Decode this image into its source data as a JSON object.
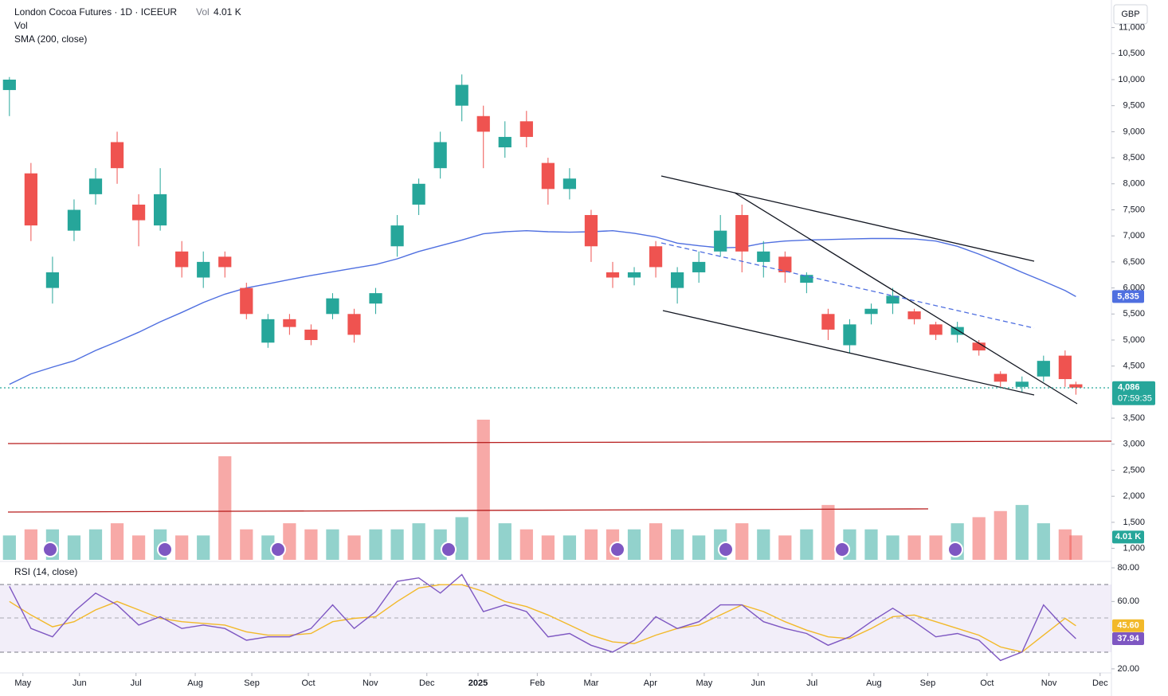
{
  "chart_data": {
    "type": "candlestick",
    "title": "London Cocoa Futures · 1D · ICEEUR",
    "currency": "GBP",
    "x": [
      0,
      8,
      16,
      24,
      32,
      40,
      48,
      56,
      64,
      72,
      80,
      88,
      96,
      104,
      112,
      120,
      128,
      136,
      144,
      152,
      160,
      168,
      176,
      184,
      192,
      200,
      208,
      216,
      224,
      232,
      240,
      248,
      256,
      264,
      272,
      280,
      288,
      296,
      304,
      312,
      320,
      328,
      336,
      344,
      352,
      360,
      368,
      376,
      384,
      392,
      396
    ],
    "xlim": [
      -3.5,
      409.2
    ],
    "xticks": [
      {
        "value": 5,
        "label": "May"
      },
      {
        "value": 26,
        "label": "Jun"
      },
      {
        "value": 47,
        "label": "Jul"
      },
      {
        "value": 69,
        "label": "Aug"
      },
      {
        "value": 90,
        "label": "Sep"
      },
      {
        "value": 111,
        "label": "Oct"
      },
      {
        "value": 134,
        "label": "Nov"
      },
      {
        "value": 155,
        "label": "Dec"
      },
      {
        "value": 174,
        "label": "2025"
      },
      {
        "value": 196,
        "label": "Feb"
      },
      {
        "value": 216,
        "label": "Mar"
      },
      {
        "value": 238,
        "label": "Apr"
      },
      {
        "value": 258,
        "label": "May"
      },
      {
        "value": 278,
        "label": "Jun"
      },
      {
        "value": 298,
        "label": "Jul"
      },
      {
        "value": 321,
        "label": "Aug"
      },
      {
        "value": 341,
        "label": "Sep"
      },
      {
        "value": 363,
        "label": "Oct"
      },
      {
        "value": 386,
        "label": "Nov"
      },
      {
        "value": 405,
        "label": "Dec"
      }
    ],
    "ylim": [
      749,
      11529
    ],
    "yticks": [
      {
        "value": 1000,
        "label": "1,000"
      },
      {
        "value": 1500,
        "label": "1,500"
      },
      {
        "value": 2000,
        "label": "2,000"
      },
      {
        "value": 2500,
        "label": "2,500"
      },
      {
        "value": 3000,
        "label": "3,000"
      },
      {
        "value": 3500,
        "label": "3,500"
      },
      {
        "value": 4500,
        "label": "4,500"
      },
      {
        "value": 5000,
        "label": "5,000"
      },
      {
        "value": 5500,
        "label": "5,500"
      },
      {
        "value": 6000,
        "label": "6,000"
      },
      {
        "value": 6500,
        "label": "6,500"
      },
      {
        "value": 7000,
        "label": "7,000"
      },
      {
        "value": 7500,
        "label": "7,500"
      },
      {
        "value": 8000,
        "label": "8,000"
      },
      {
        "value": 8500,
        "label": "8,500"
      },
      {
        "value": 9000,
        "label": "9,000"
      },
      {
        "value": 9500,
        "label": "9,500"
      },
      {
        "value": 10000,
        "label": "10,000"
      },
      {
        "value": 10500,
        "label": "10,500"
      },
      {
        "value": 11000,
        "label": "11,000"
      }
    ],
    "up_color": "#26a69a",
    "down_color": "#ef5350",
    "open": [
      9800,
      8200,
      6000,
      7100,
      7800,
      8800,
      7600,
      7200,
      6700,
      6200,
      6600,
      6000,
      4950,
      5400,
      5200,
      5500,
      5500,
      5700,
      6800,
      7600,
      8300,
      9500,
      9300,
      8700,
      9200,
      8400,
      7900,
      7400,
      6300,
      6200,
      6800,
      6000,
      6300,
      6700,
      7400,
      6500,
      6600,
      6100,
      5500,
      4900,
      5500,
      5700,
      5550,
      5300,
      5100,
      4950,
      4350,
      4100,
      4300,
      4700,
      4150
    ],
    "high": [
      10050,
      8400,
      6600,
      7700,
      8300,
      9000,
      7800,
      8300,
      6900,
      6700,
      6700,
      6100,
      5500,
      5500,
      5300,
      5900,
      5600,
      6000,
      7400,
      8100,
      9000,
      10100,
      9500,
      9200,
      9400,
      8500,
      8300,
      7500,
      6500,
      6400,
      6900,
      6400,
      6700,
      7400,
      7600,
      6900,
      6700,
      6300,
      5600,
      5400,
      5700,
      6000,
      5600,
      5350,
      5350,
      5000,
      4400,
      4300,
      4700,
      4800,
      4200
    ],
    "low": [
      9300,
      6900,
      5700,
      6900,
      7600,
      8000,
      6800,
      7100,
      6200,
      6000,
      6200,
      5400,
      4850,
      5100,
      4900,
      5400,
      4950,
      5500,
      6600,
      7400,
      8100,
      9200,
      8300,
      8500,
      8700,
      7600,
      7700,
      6500,
      6000,
      6050,
      6200,
      5700,
      6100,
      6600,
      6300,
      6200,
      6100,
      5900,
      5000,
      4750,
      5300,
      5500,
      5300,
      5000,
      4950,
      4700,
      4100,
      4000,
      4200,
      4100,
      3950
    ],
    "close": [
      10000,
      7200,
      6300,
      7500,
      8100,
      8300,
      7300,
      7800,
      6400,
      6500,
      6400,
      5500,
      5400,
      5250,
      5000,
      5800,
      5100,
      5900,
      7200,
      8000,
      8800,
      9900,
      9000,
      8900,
      8900,
      7900,
      8100,
      6800,
      6200,
      6300,
      6400,
      6300,
      6500,
      7100,
      6700,
      6700,
      6300,
      6250,
      5200,
      5300,
      5600,
      5850,
      5400,
      5100,
      5250,
      4800,
      4200,
      4200,
      4600,
      4250,
      4086
    ],
    "last_value_label": "4,086",
    "countdown": "07:59:35",
    "volume": {
      "name": "Vol",
      "values": [
        4,
        5,
        5,
        4,
        5,
        6,
        4,
        5,
        4,
        4,
        17,
        5,
        4,
        6,
        5,
        5,
        4,
        5,
        5,
        6,
        5,
        7,
        23,
        6,
        5,
        4,
        4,
        5,
        5,
        5,
        6,
        5,
        4,
        5,
        6,
        5,
        4,
        5,
        9,
        5,
        5,
        4,
        4,
        4,
        6,
        7,
        8,
        9,
        6,
        5,
        4.01
      ],
      "last_value_label": "4.01 K"
    },
    "sma": {
      "name": "SMA (200, close)",
      "color": "#4f6fe0",
      "values": [
        4150,
        4350,
        4480,
        4600,
        4800,
        4970,
        5150,
        5350,
        5530,
        5720,
        5880,
        6000,
        6080,
        6160,
        6240,
        6310,
        6380,
        6450,
        6560,
        6700,
        6810,
        6920,
        7040,
        7080,
        7100,
        7080,
        7070,
        7080,
        7100,
        7050,
        6980,
        6860,
        6810,
        6770,
        6780,
        6860,
        6900,
        6920,
        6930,
        6940,
        6950,
        6950,
        6940,
        6900,
        6800,
        6650,
        6480,
        6300,
        6130,
        5950,
        5835
      ],
      "last_value_label": "5,835"
    },
    "rsi": {
      "name": "RSI (14, close)",
      "color": "#7e57c2",
      "ylim": [
        17.6,
        83.8
      ],
      "yticks": [
        {
          "value": 20,
          "label": "20.00"
        },
        {
          "value": 60,
          "label": "60.00"
        },
        {
          "value": 80,
          "label": "80.00"
        }
      ],
      "values": [
        69,
        44,
        39,
        54,
        65,
        58,
        46,
        51,
        44,
        46,
        44,
        37,
        39,
        39,
        44,
        58,
        44,
        54,
        72,
        74,
        65,
        76,
        54,
        58,
        54,
        39,
        41,
        34,
        30,
        37,
        51,
        44,
        48,
        58,
        58,
        48,
        44,
        41,
        34,
        39,
        48,
        56,
        48,
        39,
        41,
        37,
        25,
        30,
        58,
        44,
        37.94
      ],
      "last_value_label": "37.94",
      "ma_color": "#f2b92a",
      "ma_values": [
        60,
        52,
        45,
        48,
        55,
        60,
        55,
        50,
        48,
        47,
        46,
        42,
        40,
        40,
        41,
        48,
        50,
        51,
        60,
        68,
        70,
        70,
        66,
        60,
        57,
        52,
        46,
        40,
        36,
        35,
        40,
        44,
        46,
        52,
        58,
        54,
        48,
        43,
        39,
        38,
        44,
        51,
        52,
        48,
        44,
        40,
        33,
        30,
        40,
        50,
        45.6
      ],
      "ma_last_value_label": "45.60"
    }
  }
}
